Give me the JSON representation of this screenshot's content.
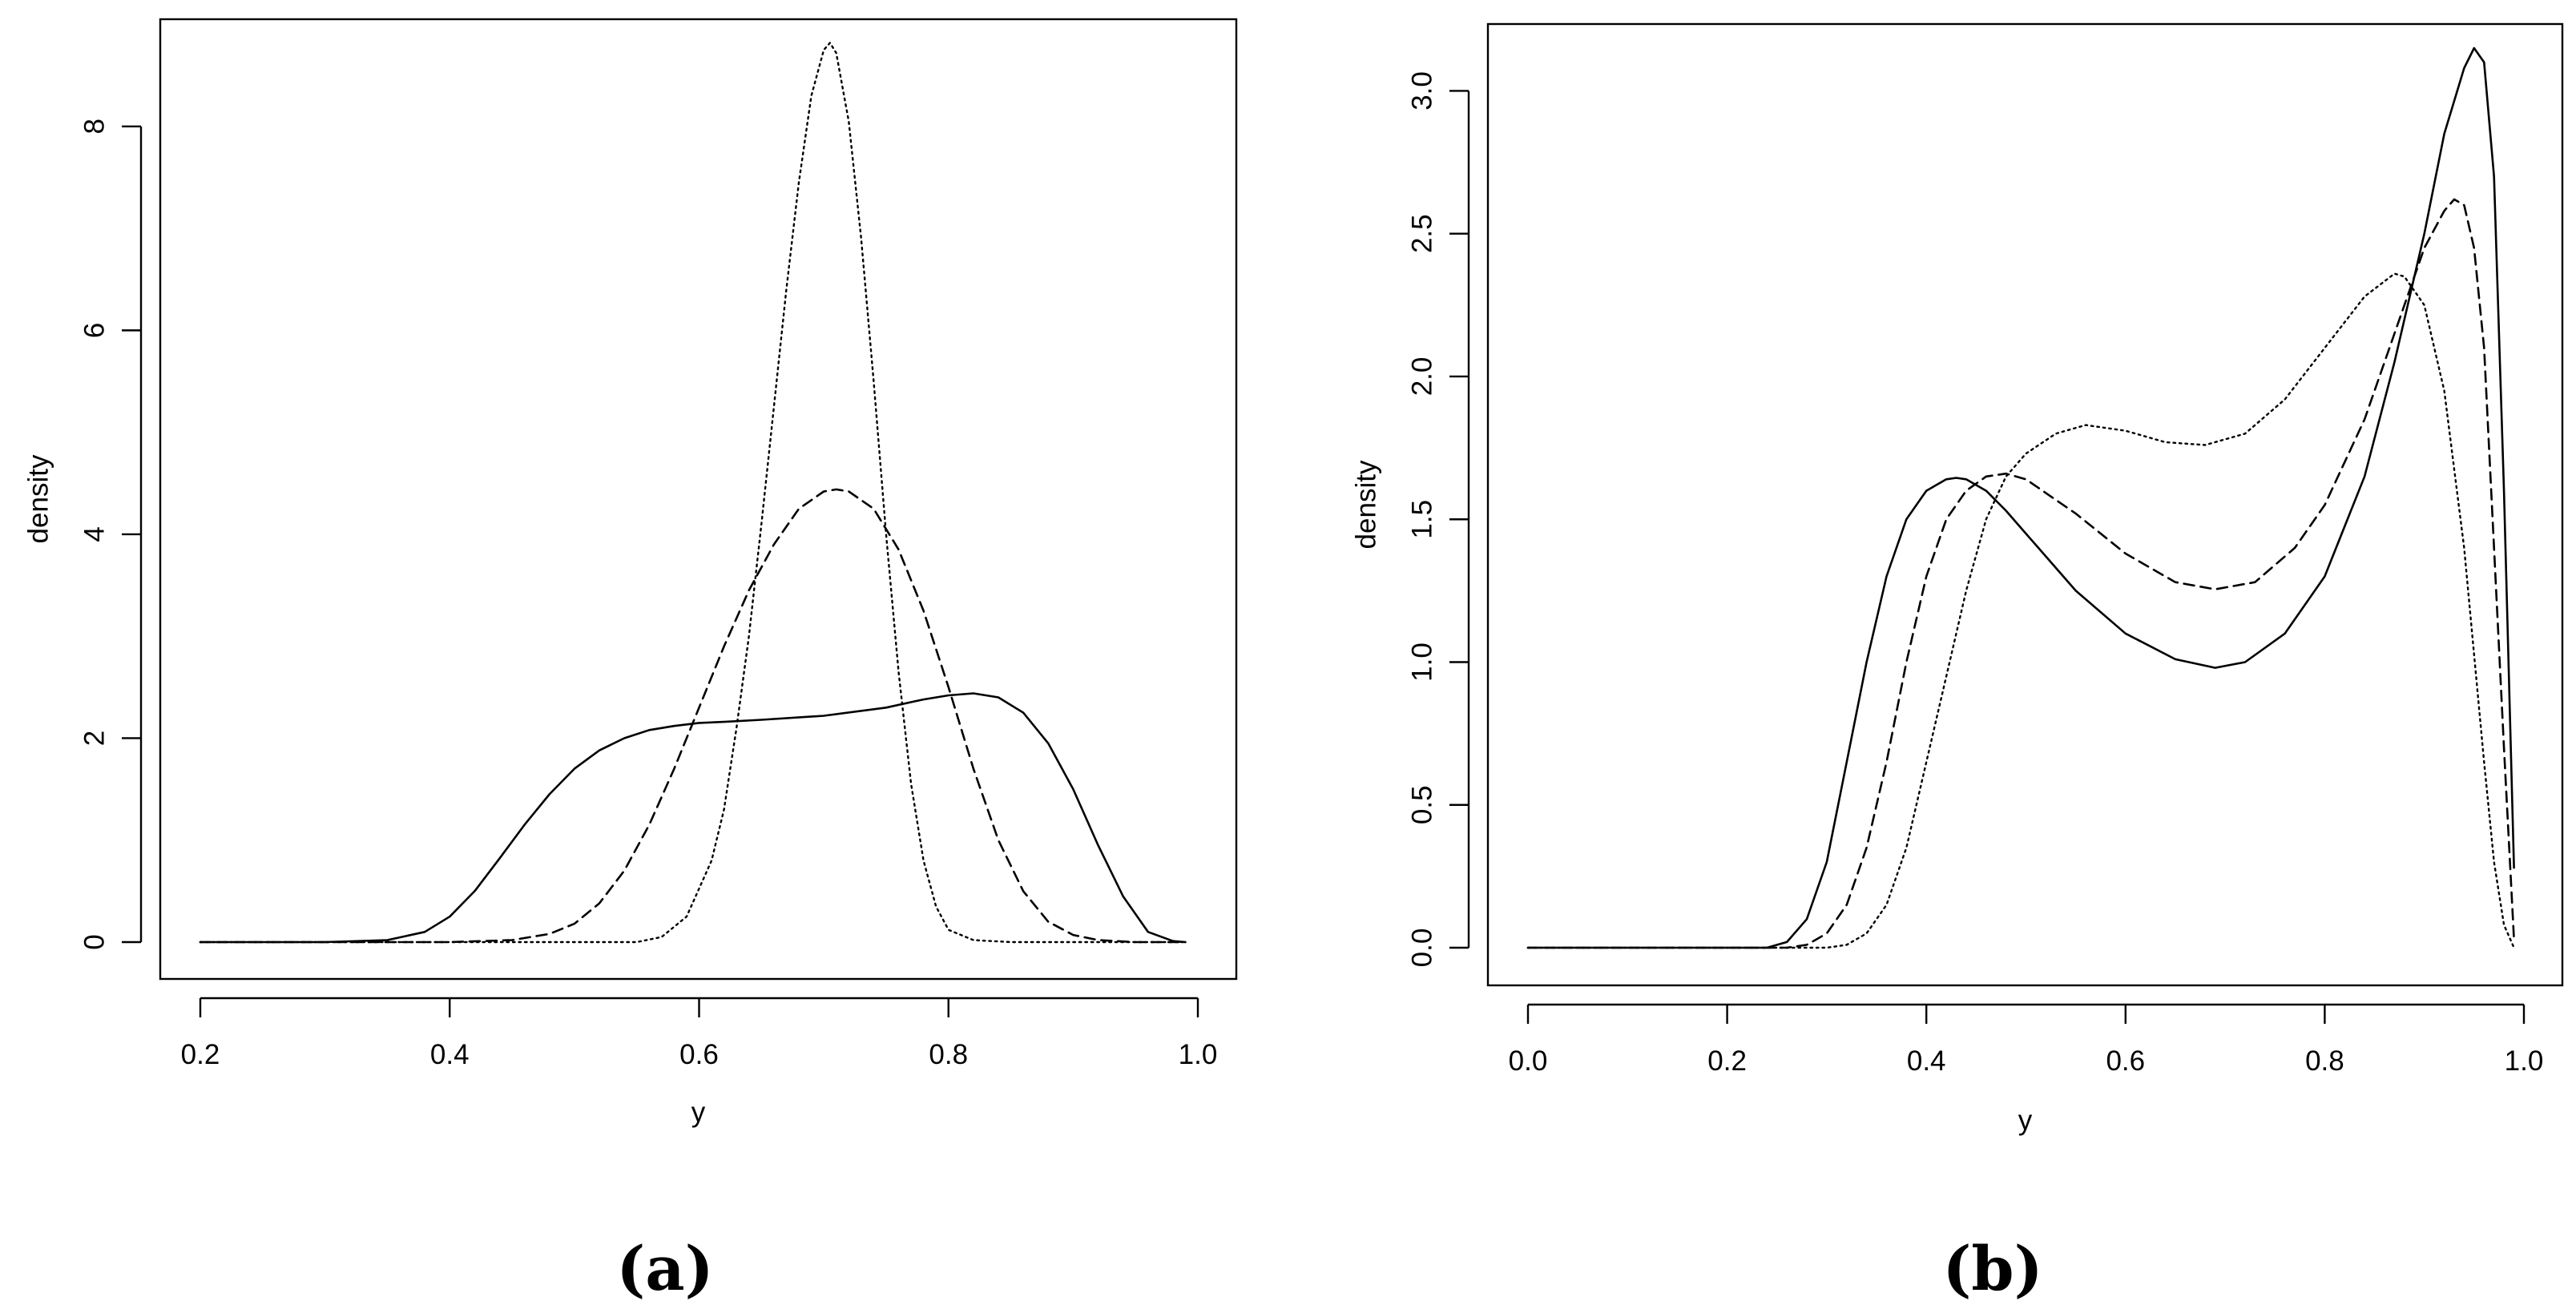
{
  "chart_data": [
    {
      "panel_label": "(a)",
      "type": "line",
      "xlabel": "y",
      "ylabel": "density",
      "xlim": [
        0.2,
        1.0
      ],
      "ylim": [
        0,
        8.8
      ],
      "x_ticks": [
        "0.2",
        "0.4",
        "0.6",
        "0.8",
        "1.0"
      ],
      "y_ticks": [
        "0",
        "2",
        "4",
        "6",
        "8"
      ],
      "grid": false,
      "legend": "none",
      "series": [
        {
          "line_style": "solid",
          "x": [
            0.2,
            0.3,
            0.35,
            0.38,
            0.4,
            0.42,
            0.44,
            0.46,
            0.48,
            0.5,
            0.52,
            0.54,
            0.56,
            0.58,
            0.6,
            0.62,
            0.65,
            0.7,
            0.75,
            0.78,
            0.8,
            0.82,
            0.84,
            0.86,
            0.88,
            0.9,
            0.92,
            0.94,
            0.96,
            0.98,
            0.99
          ],
          "y": [
            0,
            0,
            0.02,
            0.1,
            0.25,
            0.5,
            0.82,
            1.15,
            1.45,
            1.7,
            1.88,
            2.0,
            2.08,
            2.12,
            2.15,
            2.16,
            2.18,
            2.22,
            2.3,
            2.38,
            2.42,
            2.44,
            2.4,
            2.25,
            1.95,
            1.5,
            0.95,
            0.45,
            0.1,
            0.01,
            0
          ]
        },
        {
          "line_style": "dashed",
          "x": [
            0.2,
            0.4,
            0.45,
            0.48,
            0.5,
            0.52,
            0.54,
            0.56,
            0.58,
            0.6,
            0.62,
            0.64,
            0.66,
            0.68,
            0.7,
            0.71,
            0.72,
            0.74,
            0.76,
            0.78,
            0.8,
            0.82,
            0.84,
            0.86,
            0.88,
            0.9,
            0.92,
            0.95,
            0.99
          ],
          "y": [
            0,
            0,
            0.02,
            0.08,
            0.18,
            0.38,
            0.7,
            1.15,
            1.7,
            2.3,
            2.9,
            3.45,
            3.9,
            4.25,
            4.42,
            4.44,
            4.42,
            4.25,
            3.85,
            3.25,
            2.5,
            1.7,
            1.0,
            0.5,
            0.2,
            0.07,
            0.02,
            0,
            0
          ]
        },
        {
          "line_style": "dotted",
          "x": [
            0.2,
            0.55,
            0.57,
            0.59,
            0.61,
            0.62,
            0.63,
            0.64,
            0.65,
            0.66,
            0.67,
            0.68,
            0.69,
            0.7,
            0.705,
            0.71,
            0.72,
            0.73,
            0.74,
            0.75,
            0.76,
            0.77,
            0.78,
            0.79,
            0.8,
            0.82,
            0.85,
            0.99
          ],
          "y": [
            0,
            0,
            0.05,
            0.25,
            0.8,
            1.3,
            2.1,
            3.0,
            4.1,
            5.25,
            6.4,
            7.45,
            8.3,
            8.75,
            8.82,
            8.72,
            8.05,
            6.9,
            5.5,
            4.0,
            2.65,
            1.55,
            0.8,
            0.35,
            0.12,
            0.02,
            0,
            0
          ]
        }
      ]
    },
    {
      "panel_label": "(b)",
      "type": "line",
      "xlabel": "y",
      "ylabel": "density",
      "xlim": [
        0.0,
        1.0
      ],
      "ylim": [
        0,
        3.15
      ],
      "x_ticks": [
        "0.0",
        "0.2",
        "0.4",
        "0.6",
        "0.8",
        "1.0"
      ],
      "y_ticks": [
        "0.0",
        "0.5",
        "1.0",
        "1.5",
        "2.0",
        "2.5",
        "3.0"
      ],
      "grid": false,
      "legend": "none",
      "series": [
        {
          "line_style": "solid",
          "x": [
            0.0,
            0.24,
            0.26,
            0.28,
            0.3,
            0.32,
            0.34,
            0.36,
            0.38,
            0.4,
            0.42,
            0.43,
            0.44,
            0.46,
            0.48,
            0.5,
            0.55,
            0.6,
            0.65,
            0.69,
            0.72,
            0.76,
            0.8,
            0.84,
            0.87,
            0.9,
            0.92,
            0.94,
            0.95,
            0.96,
            0.97,
            0.98,
            0.99
          ],
          "y": [
            0,
            0,
            0.02,
            0.1,
            0.3,
            0.65,
            1.0,
            1.3,
            1.5,
            1.6,
            1.64,
            1.645,
            1.64,
            1.6,
            1.53,
            1.45,
            1.25,
            1.1,
            1.01,
            0.98,
            1.0,
            1.1,
            1.3,
            1.65,
            2.05,
            2.5,
            2.85,
            3.08,
            3.15,
            3.1,
            2.7,
            1.6,
            0.28
          ]
        },
        {
          "line_style": "dashed",
          "x": [
            0.0,
            0.26,
            0.28,
            0.3,
            0.32,
            0.34,
            0.36,
            0.38,
            0.4,
            0.42,
            0.44,
            0.46,
            0.48,
            0.5,
            0.55,
            0.6,
            0.65,
            0.69,
            0.73,
            0.77,
            0.8,
            0.84,
            0.87,
            0.9,
            0.92,
            0.93,
            0.94,
            0.95,
            0.96,
            0.97,
            0.98,
            0.99
          ],
          "y": [
            0,
            0,
            0.01,
            0.05,
            0.15,
            0.35,
            0.65,
            1.0,
            1.3,
            1.5,
            1.6,
            1.65,
            1.66,
            1.64,
            1.52,
            1.38,
            1.28,
            1.255,
            1.28,
            1.4,
            1.55,
            1.85,
            2.15,
            2.45,
            2.58,
            2.62,
            2.6,
            2.45,
            2.1,
            1.4,
            0.7,
            0.03
          ]
        },
        {
          "line_style": "dotted",
          "x": [
            0.0,
            0.3,
            0.32,
            0.34,
            0.36,
            0.38,
            0.4,
            0.42,
            0.44,
            0.46,
            0.48,
            0.5,
            0.53,
            0.56,
            0.6,
            0.64,
            0.68,
            0.72,
            0.76,
            0.8,
            0.84,
            0.87,
            0.88,
            0.9,
            0.92,
            0.94,
            0.96,
            0.97,
            0.98,
            0.99
          ],
          "y": [
            0,
            0,
            0.01,
            0.05,
            0.15,
            0.35,
            0.65,
            0.95,
            1.25,
            1.5,
            1.65,
            1.73,
            1.8,
            1.83,
            1.81,
            1.77,
            1.76,
            1.8,
            1.92,
            2.1,
            2.28,
            2.36,
            2.35,
            2.25,
            1.95,
            1.4,
            0.65,
            0.3,
            0.08,
            0
          ]
        }
      ]
    }
  ]
}
